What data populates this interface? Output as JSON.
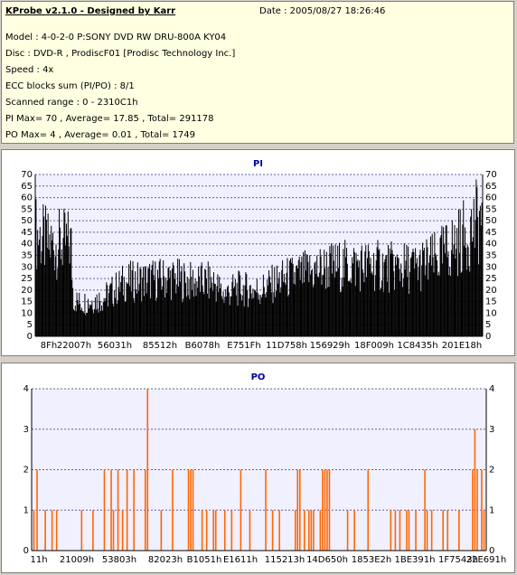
{
  "info": {
    "title": "KProbe v2.1.0 - Designed by Karr",
    "date": "Date : 2005/08/27 18:26:46",
    "lines": [
      "Model : 4-0-2-0 P:SONY    DVD RW DRU-800A  KY04",
      "Disc : DVD-R , ProdiscF01 [Prodisc Technology Inc.]",
      "Speed : 4x",
      "ECC blocks sum (PI/PO) : 8/1",
      "Scanned range : 0 - 2310C1h",
      "PI Max= 70 , Average= 17.85 , Total= 291178",
      "PO Max= 4 , Average= 0.01 , Total= 1749"
    ]
  },
  "chart_data": [
    {
      "type": "bar",
      "title": "PI",
      "ylim": [
        0,
        70
      ],
      "yticks": [
        0,
        5,
        10,
        15,
        20,
        25,
        30,
        35,
        40,
        45,
        50,
        55,
        60,
        65,
        70
      ],
      "xticks": [
        "8Fh",
        "22007h",
        "56031h",
        "85512h",
        "B6078h",
        "E751Fh",
        "11D758h",
        "156929h",
        "18F009h",
        "1C8435h",
        "201E18h"
      ],
      "color": "#000000",
      "profile": [
        [
          0,
          50
        ],
        [
          0.03,
          44
        ],
        [
          0.08,
          45
        ],
        [
          0.085,
          18
        ],
        [
          0.1,
          16
        ],
        [
          0.15,
          18
        ],
        [
          0.2,
          26
        ],
        [
          0.25,
          27
        ],
        [
          0.3,
          28
        ],
        [
          0.35,
          26
        ],
        [
          0.4,
          26
        ],
        [
          0.42,
          20
        ],
        [
          0.45,
          23
        ],
        [
          0.5,
          22
        ],
        [
          0.52,
          24
        ],
        [
          0.55,
          27
        ],
        [
          0.6,
          30
        ],
        [
          0.65,
          33
        ],
        [
          0.7,
          34
        ],
        [
          0.75,
          34
        ],
        [
          0.8,
          33
        ],
        [
          0.85,
          33
        ],
        [
          0.9,
          37
        ],
        [
          0.93,
          43
        ],
        [
          0.96,
          48
        ],
        [
          1.0,
          58
        ]
      ]
    },
    {
      "type": "bar",
      "title": "PO",
      "ylim": [
        0,
        4
      ],
      "yticks": [
        0,
        1,
        2,
        3,
        4
      ],
      "xticks": [
        "11h",
        "21009h",
        "53803h",
        "82023h",
        "B1051h",
        "E1611h",
        "115213h",
        "14D650h",
        "1853E2h",
        "1BE391h",
        "1F7543h",
        "22E691h"
      ],
      "color": "#ff6600",
      "bars": [
        [
          0.005,
          1
        ],
        [
          0.012,
          2
        ],
        [
          0.03,
          1
        ],
        [
          0.045,
          1
        ],
        [
          0.055,
          1
        ],
        [
          0.11,
          1
        ],
        [
          0.135,
          1
        ],
        [
          0.16,
          2
        ],
        [
          0.175,
          2
        ],
        [
          0.18,
          1
        ],
        [
          0.19,
          2
        ],
        [
          0.2,
          1
        ],
        [
          0.21,
          2
        ],
        [
          0.225,
          2
        ],
        [
          0.25,
          2
        ],
        [
          0.255,
          4
        ],
        [
          0.285,
          1
        ],
        [
          0.31,
          2
        ],
        [
          0.345,
          2
        ],
        [
          0.35,
          2
        ],
        [
          0.355,
          2
        ],
        [
          0.375,
          1
        ],
        [
          0.385,
          1
        ],
        [
          0.4,
          1
        ],
        [
          0.405,
          1
        ],
        [
          0.425,
          1
        ],
        [
          0.44,
          1
        ],
        [
          0.46,
          2
        ],
        [
          0.48,
          1
        ],
        [
          0.515,
          2
        ],
        [
          0.53,
          1
        ],
        [
          0.545,
          1
        ],
        [
          0.58,
          1
        ],
        [
          0.585,
          2
        ],
        [
          0.59,
          2
        ],
        [
          0.6,
          1
        ],
        [
          0.61,
          1
        ],
        [
          0.615,
          1
        ],
        [
          0.62,
          1
        ],
        [
          0.635,
          1
        ],
        [
          0.64,
          2
        ],
        [
          0.645,
          2
        ],
        [
          0.65,
          2
        ],
        [
          0.655,
          2
        ],
        [
          0.695,
          1
        ],
        [
          0.71,
          1
        ],
        [
          0.74,
          2
        ],
        [
          0.79,
          1
        ],
        [
          0.8,
          1
        ],
        [
          0.81,
          1
        ],
        [
          0.825,
          1
        ],
        [
          0.83,
          1
        ],
        [
          0.845,
          1
        ],
        [
          0.865,
          2
        ],
        [
          0.87,
          1
        ],
        [
          0.88,
          1
        ],
        [
          0.905,
          1
        ],
        [
          0.915,
          1
        ],
        [
          0.94,
          1
        ],
        [
          0.97,
          2
        ],
        [
          0.975,
          3
        ],
        [
          0.98,
          2
        ],
        [
          0.99,
          2
        ],
        [
          0.995,
          1
        ]
      ]
    }
  ]
}
